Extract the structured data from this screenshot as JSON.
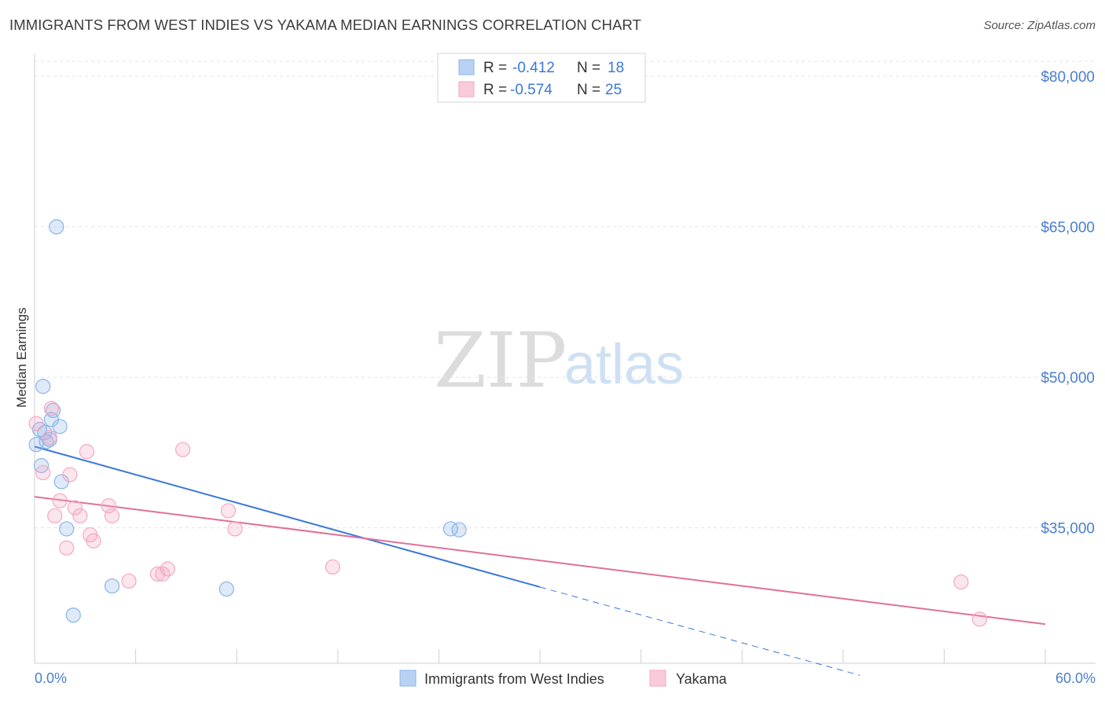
{
  "title": "IMMIGRANTS FROM WEST INDIES VS YAKAMA MEDIAN EARNINGS CORRELATION CHART",
  "source": "Source: ZipAtlas.com",
  "watermark": {
    "zip": "ZIP",
    "atlas": "atlas"
  },
  "legend": {
    "r_label": "R =",
    "n_label": "N =",
    "entries": [
      {
        "r": "-0.412",
        "n": "18"
      },
      {
        "r": "-0.574",
        "n": "25"
      }
    ]
  },
  "chart_data": {
    "type": "scatter",
    "title": "IMMIGRANTS FROM WEST INDIES VS YAKAMA MEDIAN EARNINGS CORRELATION CHART",
    "xlabel": "",
    "ylabel": "Median Earnings",
    "xlim": [
      0,
      60
    ],
    "ylim": [
      21500,
      81500
    ],
    "x_tick_labels": [
      "0.0%",
      "60.0%"
    ],
    "y_ticks": [
      35000,
      50000,
      65000,
      80000
    ],
    "y_tick_labels": [
      "$35,000",
      "$50,000",
      "$65,000",
      "$80,000"
    ],
    "grid": true,
    "legend_position": "top-center",
    "series": [
      {
        "name": "Immigrants from West Indies",
        "color": "#8ab4ea",
        "line_color": "#3a78d8",
        "x": [
          0.1,
          0.3,
          0.5,
          0.4,
          0.6,
          0.7,
          0.9,
          1.0,
          1.1,
          1.3,
          1.5,
          1.6,
          1.9,
          2.3,
          4.6,
          11.4,
          24.7,
          25.2
        ],
        "y": [
          43300,
          44800,
          49100,
          41200,
          44500,
          43600,
          43800,
          45800,
          46700,
          65000,
          45100,
          39600,
          34900,
          26300,
          29200,
          28900,
          34900,
          34800
        ],
        "trend": {
          "x0": 0,
          "y0": 43100,
          "x1": 30,
          "y1": 29100,
          "dash_x1": 49,
          "dash_y1": 20300
        }
      },
      {
        "name": "Yakama",
        "color": "#f4a7c0",
        "line_color": "#e0709a",
        "x": [
          0.1,
          0.5,
          0.9,
          1.0,
          1.2,
          1.5,
          1.9,
          2.1,
          2.4,
          2.7,
          3.1,
          3.3,
          3.5,
          4.4,
          4.6,
          5.6,
          7.3,
          7.6,
          7.9,
          8.8,
          11.5,
          11.9,
          17.7,
          55.0,
          56.1
        ],
        "y": [
          45400,
          40500,
          44000,
          46900,
          36200,
          37700,
          33000,
          40300,
          37000,
          36200,
          42600,
          34300,
          33700,
          37200,
          36200,
          29700,
          30400,
          30400,
          30900,
          42800,
          36700,
          34900,
          31100,
          29600,
          25900
        ],
        "trend": {
          "x0": 0,
          "y0": 38100,
          "x1": 60,
          "y1": 25400
        }
      }
    ]
  }
}
